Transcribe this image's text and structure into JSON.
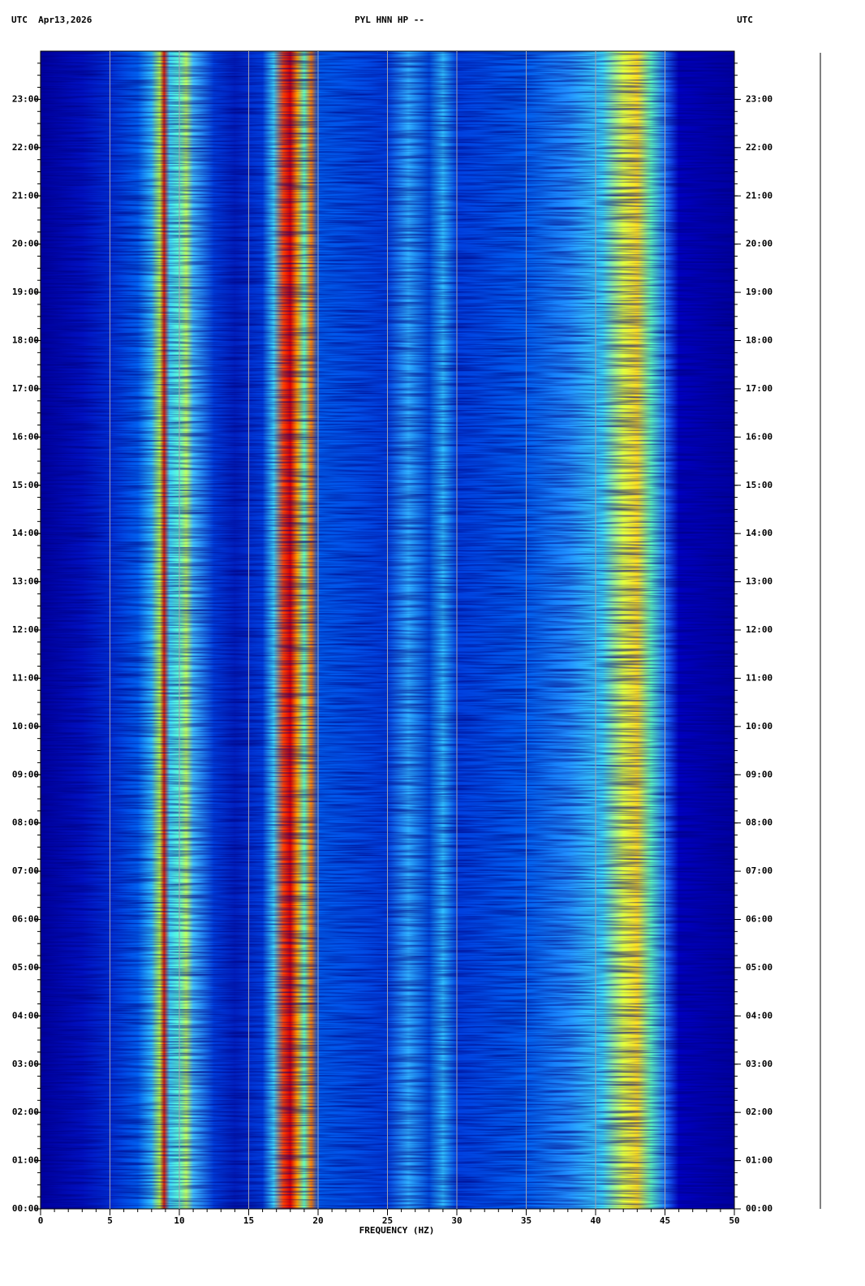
{
  "header": {
    "left": "UTC  Apr13,2026",
    "center": "PYL HNN HP --",
    "right": "UTC"
  },
  "chart_data": {
    "type": "spectrogram",
    "xlabel": "FREQUENCY (HZ)",
    "xlim": [
      0,
      50
    ],
    "xticks": [
      0,
      5,
      10,
      15,
      20,
      25,
      30,
      35,
      40,
      45,
      50
    ],
    "xminorticks": [
      0,
      1,
      2,
      3,
      4,
      5,
      6,
      7,
      8,
      9,
      10,
      11,
      12,
      13,
      14,
      15,
      16,
      17,
      18,
      19,
      20,
      21,
      22,
      23,
      24,
      25,
      26,
      27,
      28,
      29,
      30,
      31,
      32,
      33,
      34,
      35,
      36,
      37,
      38,
      39,
      40,
      41,
      42,
      43,
      44,
      45,
      46,
      47,
      48,
      49,
      50
    ],
    "ylim": [
      0,
      24
    ],
    "yticks": [
      {
        "value": 0,
        "label": "00:00"
      },
      {
        "value": 1,
        "label": "01:00"
      },
      {
        "value": 2,
        "label": "02:00"
      },
      {
        "value": 3,
        "label": "03:00"
      },
      {
        "value": 4,
        "label": "04:00"
      },
      {
        "value": 5,
        "label": "05:00"
      },
      {
        "value": 6,
        "label": "06:00"
      },
      {
        "value": 7,
        "label": "07:00"
      },
      {
        "value": 8,
        "label": "08:00"
      },
      {
        "value": 9,
        "label": "09:00"
      },
      {
        "value": 10,
        "label": "10:00"
      },
      {
        "value": 11,
        "label": "11:00"
      },
      {
        "value": 12,
        "label": "12:00"
      },
      {
        "value": 13,
        "label": "13:00"
      },
      {
        "value": 14,
        "label": "14:00"
      },
      {
        "value": 15,
        "label": "15:00"
      },
      {
        "value": 16,
        "label": "16:00"
      },
      {
        "value": 17,
        "label": "17:00"
      },
      {
        "value": 18,
        "label": "18:00"
      },
      {
        "value": 19,
        "label": "19:00"
      },
      {
        "value": 20,
        "label": "20:00"
      },
      {
        "value": 21,
        "label": "21:00"
      },
      {
        "value": 22,
        "label": "22:00"
      },
      {
        "value": 23,
        "label": "23:00"
      }
    ],
    "yminorticks": [
      0,
      0.25,
      0.5,
      0.75,
      1,
      1.25,
      1.5,
      1.75,
      2,
      2.25,
      2.5,
      2.75,
      3,
      3.25,
      3.5,
      3.75,
      4,
      4.25,
      4.5,
      4.75,
      5,
      5.25,
      5.5,
      5.75,
      6,
      6.25,
      6.5,
      6.75,
      7,
      7.25,
      7.5,
      7.75,
      8,
      8.25,
      8.5,
      8.75,
      9,
      9.25,
      9.5,
      9.75,
      10,
      10.25,
      10.5,
      10.75,
      11,
      11.25,
      11.5,
      11.75,
      12,
      12.25,
      12.5,
      12.75,
      13,
      13.25,
      13.5,
      13.75,
      14,
      14.25,
      14.5,
      14.75,
      15,
      15.25,
      15.5,
      15.75,
      16,
      16.25,
      16.5,
      16.75,
      17,
      17.25,
      17.5,
      17.75,
      18,
      18.25,
      18.5,
      18.75,
      19,
      19.25,
      19.5,
      19.75,
      20,
      20.25,
      20.5,
      20.75,
      21,
      21.25,
      21.5,
      21.75,
      22,
      22.25,
      22.5,
      22.75,
      23,
      23.25,
      23.5,
      23.75
    ],
    "grid": true
  }
}
